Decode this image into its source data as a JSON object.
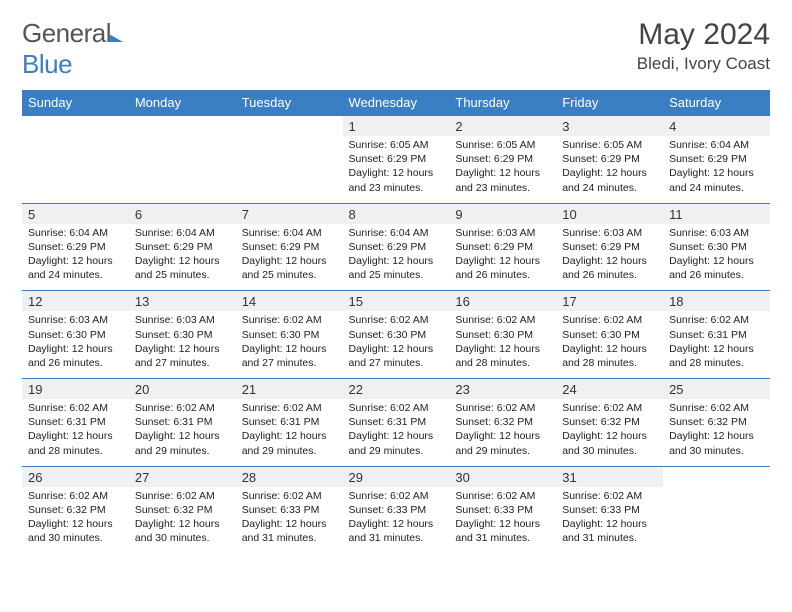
{
  "logo": {
    "text1": "General",
    "text2": "Blue"
  },
  "title": "May 2024",
  "location": "Bledi, Ivory Coast",
  "colors": {
    "header_bg": "#3a7fc4",
    "daynum_bg": "#eef0f2",
    "text": "#333"
  },
  "dow": [
    "Sunday",
    "Monday",
    "Tuesday",
    "Wednesday",
    "Thursday",
    "Friday",
    "Saturday"
  ],
  "weeks": [
    [
      null,
      null,
      null,
      {
        "n": "1",
        "sr": "6:05 AM",
        "ss": "6:29 PM",
        "dl": "12 hours and 23 minutes."
      },
      {
        "n": "2",
        "sr": "6:05 AM",
        "ss": "6:29 PM",
        "dl": "12 hours and 23 minutes."
      },
      {
        "n": "3",
        "sr": "6:05 AM",
        "ss": "6:29 PM",
        "dl": "12 hours and 24 minutes."
      },
      {
        "n": "4",
        "sr": "6:04 AM",
        "ss": "6:29 PM",
        "dl": "12 hours and 24 minutes."
      }
    ],
    [
      {
        "n": "5",
        "sr": "6:04 AM",
        "ss": "6:29 PM",
        "dl": "12 hours and 24 minutes."
      },
      {
        "n": "6",
        "sr": "6:04 AM",
        "ss": "6:29 PM",
        "dl": "12 hours and 25 minutes."
      },
      {
        "n": "7",
        "sr": "6:04 AM",
        "ss": "6:29 PM",
        "dl": "12 hours and 25 minutes."
      },
      {
        "n": "8",
        "sr": "6:04 AM",
        "ss": "6:29 PM",
        "dl": "12 hours and 25 minutes."
      },
      {
        "n": "9",
        "sr": "6:03 AM",
        "ss": "6:29 PM",
        "dl": "12 hours and 26 minutes."
      },
      {
        "n": "10",
        "sr": "6:03 AM",
        "ss": "6:29 PM",
        "dl": "12 hours and 26 minutes."
      },
      {
        "n": "11",
        "sr": "6:03 AM",
        "ss": "6:30 PM",
        "dl": "12 hours and 26 minutes."
      }
    ],
    [
      {
        "n": "12",
        "sr": "6:03 AM",
        "ss": "6:30 PM",
        "dl": "12 hours and 26 minutes."
      },
      {
        "n": "13",
        "sr": "6:03 AM",
        "ss": "6:30 PM",
        "dl": "12 hours and 27 minutes."
      },
      {
        "n": "14",
        "sr": "6:02 AM",
        "ss": "6:30 PM",
        "dl": "12 hours and 27 minutes."
      },
      {
        "n": "15",
        "sr": "6:02 AM",
        "ss": "6:30 PM",
        "dl": "12 hours and 27 minutes."
      },
      {
        "n": "16",
        "sr": "6:02 AM",
        "ss": "6:30 PM",
        "dl": "12 hours and 28 minutes."
      },
      {
        "n": "17",
        "sr": "6:02 AM",
        "ss": "6:30 PM",
        "dl": "12 hours and 28 minutes."
      },
      {
        "n": "18",
        "sr": "6:02 AM",
        "ss": "6:31 PM",
        "dl": "12 hours and 28 minutes."
      }
    ],
    [
      {
        "n": "19",
        "sr": "6:02 AM",
        "ss": "6:31 PM",
        "dl": "12 hours and 28 minutes."
      },
      {
        "n": "20",
        "sr": "6:02 AM",
        "ss": "6:31 PM",
        "dl": "12 hours and 29 minutes."
      },
      {
        "n": "21",
        "sr": "6:02 AM",
        "ss": "6:31 PM",
        "dl": "12 hours and 29 minutes."
      },
      {
        "n": "22",
        "sr": "6:02 AM",
        "ss": "6:31 PM",
        "dl": "12 hours and 29 minutes."
      },
      {
        "n": "23",
        "sr": "6:02 AM",
        "ss": "6:32 PM",
        "dl": "12 hours and 29 minutes."
      },
      {
        "n": "24",
        "sr": "6:02 AM",
        "ss": "6:32 PM",
        "dl": "12 hours and 30 minutes."
      },
      {
        "n": "25",
        "sr": "6:02 AM",
        "ss": "6:32 PM",
        "dl": "12 hours and 30 minutes."
      }
    ],
    [
      {
        "n": "26",
        "sr": "6:02 AM",
        "ss": "6:32 PM",
        "dl": "12 hours and 30 minutes."
      },
      {
        "n": "27",
        "sr": "6:02 AM",
        "ss": "6:32 PM",
        "dl": "12 hours and 30 minutes."
      },
      {
        "n": "28",
        "sr": "6:02 AM",
        "ss": "6:33 PM",
        "dl": "12 hours and 31 minutes."
      },
      {
        "n": "29",
        "sr": "6:02 AM",
        "ss": "6:33 PM",
        "dl": "12 hours and 31 minutes."
      },
      {
        "n": "30",
        "sr": "6:02 AM",
        "ss": "6:33 PM",
        "dl": "12 hours and 31 minutes."
      },
      {
        "n": "31",
        "sr": "6:02 AM",
        "ss": "6:33 PM",
        "dl": "12 hours and 31 minutes."
      },
      null
    ]
  ],
  "labels": {
    "sunrise": "Sunrise: ",
    "sunset": "Sunset: ",
    "daylight": "Daylight: "
  }
}
